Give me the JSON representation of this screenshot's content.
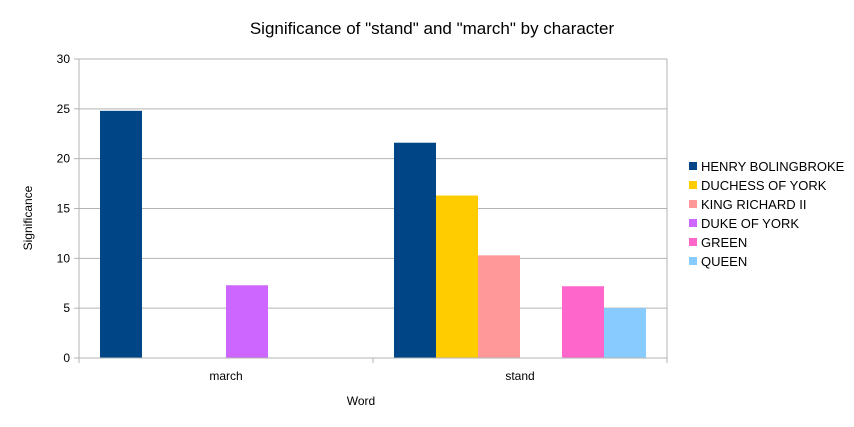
{
  "chart_data": {
    "type": "bar",
    "title": "Significance of \"stand\" and \"march\" by character",
    "xlabel": "Word",
    "ylabel": "Significance",
    "categories": [
      "march",
      "stand"
    ],
    "ylim": [
      0,
      30
    ],
    "yticks": [
      0,
      5,
      10,
      15,
      20,
      25,
      30
    ],
    "grid": true,
    "legend_position": "right",
    "series": [
      {
        "name": "HENRY BOLINGBROKE",
        "color": "#004586",
        "values": [
          24.8,
          21.6
        ]
      },
      {
        "name": "DUCHESS OF YORK",
        "color": "#ffcc00",
        "values": [
          null,
          16.3
        ]
      },
      {
        "name": "KING RICHARD II",
        "color": "#ff9999",
        "values": [
          null,
          10.3
        ]
      },
      {
        "name": "DUKE OF YORK",
        "color": "#cc66ff",
        "values": [
          7.3,
          null
        ]
      },
      {
        "name": "GREEN",
        "color": "#ff66cc",
        "values": [
          null,
          7.2
        ]
      },
      {
        "name": "QUEEN",
        "color": "#88ccff",
        "values": [
          null,
          5.0
        ]
      }
    ]
  }
}
